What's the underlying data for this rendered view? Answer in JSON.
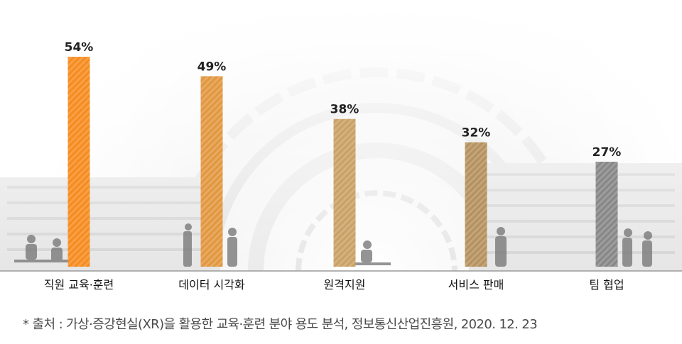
{
  "chart_data": {
    "type": "bar",
    "categories": [
      "직원 교육·훈련",
      "데이터 시각화",
      "원격지원",
      "서비스 판매",
      "팀 협업"
    ],
    "values": [
      54,
      49,
      38,
      32,
      27
    ],
    "value_labels": [
      "54%",
      "49%",
      "38%",
      "32%",
      "27%"
    ],
    "ylim": [
      0,
      54
    ],
    "grid": false,
    "legend": "none",
    "bar_colors": [
      "#f68b1f",
      "#e2973f",
      "#c9a165",
      "#b5915e",
      "#878787"
    ]
  },
  "source_note": "* 출처 : 가상·증강현실(XR)을 활용한 교육·훈련 분야 용도 분석, 정보통신산업진흥원, 2020. 12. 23"
}
